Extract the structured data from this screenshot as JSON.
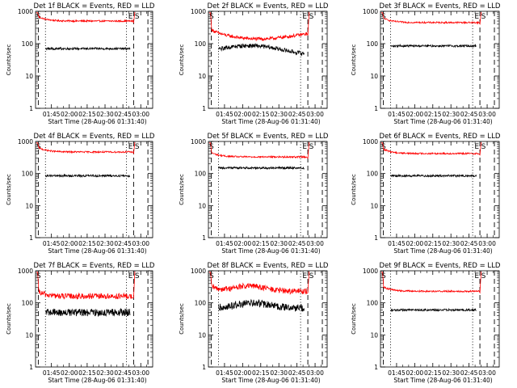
{
  "figure": {
    "background": "#ffffff",
    "axis_color": "#000000"
  },
  "panels": [
    {
      "title": "Det 1f BLACK = Events, RED = LLD",
      "ylabel": "Counts/sec",
      "xlabel": "Start Time (28-Aug-06 01:31:40)",
      "x_ticks": [
        "01:45",
        "02:00",
        "02:15",
        "02:30",
        "02:45",
        "03:00"
      ],
      "y_ticks": [
        "1",
        "10",
        "100",
        "1000"
      ],
      "marker_e": "E",
      "marker_s": "S",
      "red_level": 500,
      "black_level": 70,
      "red_shape": "flat",
      "noise": "low"
    },
    {
      "title": "Det 2f BLACK = Events, RED = LLD",
      "ylabel": "Counts/sec",
      "xlabel": "Start Time (28-Aug-06 01:31:40)",
      "x_ticks": [
        "01:45",
        "02:00",
        "02:15",
        "02:30",
        "02:45",
        "03:00"
      ],
      "y_ticks": [
        "1",
        "10",
        "100",
        "1000"
      ],
      "marker_e": "E",
      "marker_s": "S",
      "red_level": 200,
      "black_level": 75,
      "red_shape": "dip",
      "noise": "mid"
    },
    {
      "title": "Det 3f BLACK = Events, RED = LLD",
      "ylabel": "Counts/sec",
      "xlabel": "Start Time (28-Aug-06 01:31:40)",
      "x_ticks": [
        "01:45",
        "02:00",
        "02:15",
        "02:30",
        "02:45",
        "03:00"
      ],
      "y_ticks": [
        "1",
        "10",
        "100",
        "1000"
      ],
      "marker_e": "E",
      "marker_s": "S",
      "red_level": 450,
      "black_level": 85,
      "red_shape": "flat",
      "noise": "low"
    },
    {
      "title": "Det 4f BLACK = Events, RED = LLD",
      "ylabel": "Counts/sec",
      "xlabel": "Start Time (28-Aug-06 01:31:40)",
      "x_ticks": [
        "01:45",
        "02:00",
        "02:15",
        "02:30",
        "02:45",
        "03:00"
      ],
      "y_ticks": [
        "1",
        "10",
        "100",
        "1000"
      ],
      "marker_e": "E",
      "marker_s": "S",
      "red_level": 470,
      "black_level": 85,
      "red_shape": "flat",
      "noise": "low"
    },
    {
      "title": "Det 5f BLACK = Events, RED = LLD",
      "ylabel": "Counts/sec",
      "xlabel": "Start Time (28-Aug-06 01:31:40)",
      "x_ticks": [
        "01:45",
        "02:00",
        "02:15",
        "02:30",
        "02:45",
        "03:00"
      ],
      "y_ticks": [
        "1",
        "10",
        "100",
        "1000"
      ],
      "marker_e": "E",
      "marker_s": "S",
      "red_level": 330,
      "black_level": 150,
      "red_shape": "flat",
      "noise": "low"
    },
    {
      "title": "Det 6f BLACK = Events, RED = LLD",
      "ylabel": "Counts/sec",
      "xlabel": "Start Time (28-Aug-06 01:31:40)",
      "x_ticks": [
        "01:45",
        "02:00",
        "02:15",
        "02:30",
        "02:45",
        "03:00"
      ],
      "y_ticks": [
        "1",
        "10",
        "100",
        "1000"
      ],
      "marker_e": "E",
      "marker_s": "S",
      "red_level": 420,
      "black_level": 85,
      "red_shape": "flat",
      "noise": "low"
    },
    {
      "title": "Det 7f BLACK = Events, RED = LLD",
      "ylabel": "Counts/sec",
      "xlabel": "Start Time (28-Aug-06 01:31:40)",
      "x_ticks": [
        "01:45",
        "02:00",
        "02:15",
        "02:30",
        "02:45",
        "03:00"
      ],
      "y_ticks": [
        "1",
        "10",
        "100",
        "1000"
      ],
      "marker_e": "E",
      "marker_s": "S",
      "red_level": 160,
      "black_level": 50,
      "red_shape": "flat",
      "noise": "high"
    },
    {
      "title": "Det 8f BLACK = Events, RED = LLD",
      "ylabel": "Counts/sec",
      "xlabel": "Start Time (28-Aug-06 01:31:40)",
      "x_ticks": [
        "01:45",
        "02:00",
        "02:15",
        "02:30",
        "02:45",
        "03:00"
      ],
      "y_ticks": [
        "1",
        "10",
        "100",
        "1000"
      ],
      "marker_e": "E",
      "marker_s": "S",
      "red_level": 230,
      "black_level": 70,
      "red_shape": "hump",
      "noise": "high"
    },
    {
      "title": "Det 9f BLACK = Events, RED = LLD",
      "ylabel": "Counts/sec",
      "xlabel": "Start Time (28-Aug-06 01:31:40)",
      "x_ticks": [
        "01:45",
        "02:00",
        "02:15",
        "02:30",
        "02:45",
        "03:00"
      ],
      "y_ticks": [
        "1",
        "10",
        "100",
        "1000"
      ],
      "marker_e": "E",
      "marker_s": "S",
      "red_level": 230,
      "black_level": 60,
      "red_shape": "flat",
      "noise": "low"
    }
  ],
  "chart_data": {
    "type": "line",
    "y_scale": "log",
    "ylim": [
      1,
      1000
    ],
    "time_start": "01:31:40",
    "time_end": "03:10",
    "series_colors": {
      "lld": "#ff0000",
      "events": "#000000"
    },
    "panels_summary": "3x3 grid of detector count-rate time series (Det 1f..9f)",
    "note_markers": [
      "E",
      "S"
    ]
  }
}
